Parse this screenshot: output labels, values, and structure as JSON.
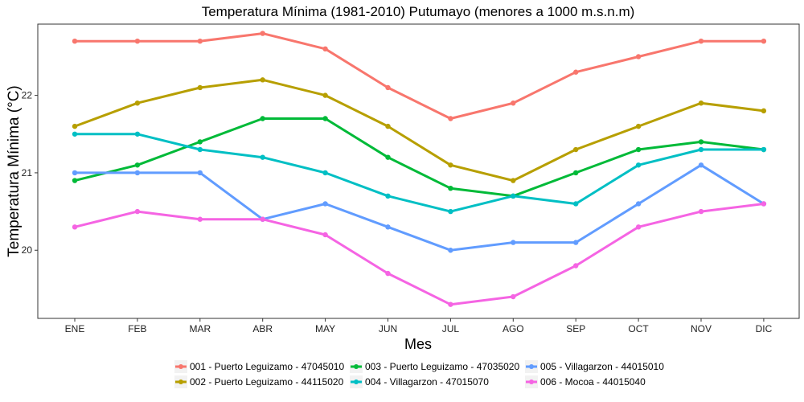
{
  "chart_data": {
    "type": "line",
    "title": "Temperatura Mínima (1981-2010) Putumayo (menores a 1000 m.s.n.m)",
    "xlabel": "Mes",
    "ylabel": "Temperatura Mínima (°C)",
    "categories": [
      "ENE",
      "FEB",
      "MAR",
      "ABR",
      "MAY",
      "JUN",
      "JUL",
      "AGO",
      "SEP",
      "OCT",
      "NOV",
      "DIC"
    ],
    "ylim": [
      19.12,
      22.92
    ],
    "yticks": [
      20,
      21,
      22
    ],
    "grid": false,
    "legend_position": "bottom",
    "series": [
      {
        "name": "001 - Puerto Leguizamo - 47045010",
        "color": "#F8766D",
        "values": [
          22.7,
          22.7,
          22.7,
          22.8,
          22.6,
          22.1,
          21.7,
          21.9,
          22.3,
          22.5,
          22.7,
          22.7
        ]
      },
      {
        "name": "002 - Puerto Leguizamo - 44115020",
        "color": "#B79F00",
        "values": [
          21.6,
          21.9,
          22.1,
          22.2,
          22.0,
          21.6,
          21.1,
          20.9,
          21.3,
          21.6,
          21.9,
          21.8
        ]
      },
      {
        "name": "003 - Puerto Leguizamo - 47035020",
        "color": "#00BA38",
        "values": [
          20.9,
          21.1,
          21.4,
          21.7,
          21.7,
          21.2,
          20.8,
          20.7,
          21.0,
          21.3,
          21.4,
          21.3
        ]
      },
      {
        "name": "004 - Villagarzon - 47015070",
        "color": "#00BFC4",
        "values": [
          21.5,
          21.5,
          21.3,
          21.2,
          21.0,
          20.7,
          20.5,
          20.7,
          20.6,
          21.1,
          21.3,
          21.3
        ]
      },
      {
        "name": "005 - Villagarzon - 44015010",
        "color": "#619CFF",
        "values": [
          21.0,
          21.0,
          21.0,
          20.4,
          20.6,
          20.3,
          20.0,
          20.1,
          20.1,
          20.6,
          21.1,
          20.6
        ]
      },
      {
        "name": "006 - Mocoa - 44015040",
        "color": "#F564E3",
        "values": [
          20.3,
          20.5,
          20.4,
          20.4,
          20.2,
          19.7,
          19.3,
          19.4,
          19.8,
          20.3,
          20.5,
          20.6
        ]
      }
    ]
  }
}
